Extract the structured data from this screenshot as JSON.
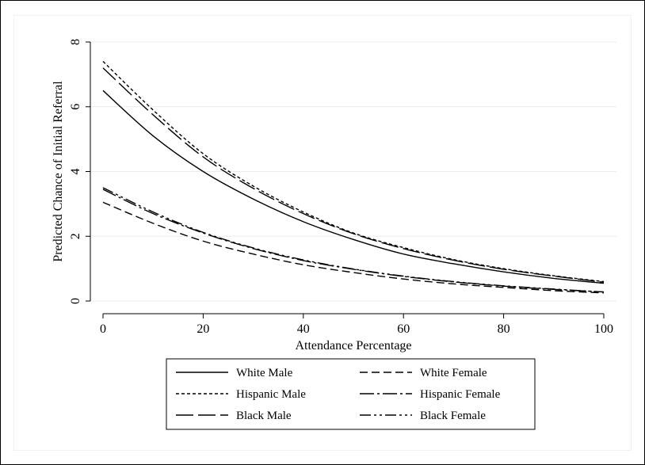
{
  "chart_data": {
    "type": "line",
    "title": "",
    "xlabel": "Attendance Percentage",
    "ylabel": "Predicted Chance of Initial Referral",
    "xlim": [
      0,
      100
    ],
    "ylim": [
      0,
      8
    ],
    "xticks": [
      0,
      20,
      40,
      60,
      80,
      100
    ],
    "yticks": [
      0,
      2,
      4,
      6,
      8
    ],
    "grid": true,
    "legend_position": "bottom",
    "x": [
      0,
      10,
      20,
      30,
      40,
      50,
      60,
      70,
      80,
      90,
      100
    ],
    "series": [
      {
        "name": "White Male",
        "dash": "solid",
        "values": [
          6.5,
          5.1,
          4.0,
          3.15,
          2.45,
          1.9,
          1.45,
          1.15,
          0.9,
          0.7,
          0.55
        ]
      },
      {
        "name": "White Female",
        "dash": "dash",
        "values": [
          3.05,
          2.4,
          1.85,
          1.45,
          1.12,
          0.88,
          0.68,
          0.53,
          0.42,
          0.32,
          0.25
        ]
      },
      {
        "name": "Hispanic Male",
        "dash": "shortdash",
        "values": [
          7.4,
          5.9,
          4.55,
          3.55,
          2.75,
          2.1,
          1.65,
          1.28,
          1.0,
          0.78,
          0.6
        ]
      },
      {
        "name": "Hispanic Female",
        "dash": "longdashdot",
        "values": [
          3.45,
          2.7,
          2.1,
          1.62,
          1.25,
          0.98,
          0.76,
          0.59,
          0.46,
          0.36,
          0.28
        ]
      },
      {
        "name": "Black Male",
        "dash": "longdash",
        "values": [
          7.2,
          5.75,
          4.45,
          3.48,
          2.7,
          2.08,
          1.62,
          1.26,
          0.98,
          0.77,
          0.58
        ]
      },
      {
        "name": "Black Female",
        "dash": "dashdotdot",
        "values": [
          3.5,
          2.75,
          2.12,
          1.64,
          1.27,
          0.99,
          0.77,
          0.6,
          0.47,
          0.37,
          0.28
        ]
      }
    ]
  }
}
